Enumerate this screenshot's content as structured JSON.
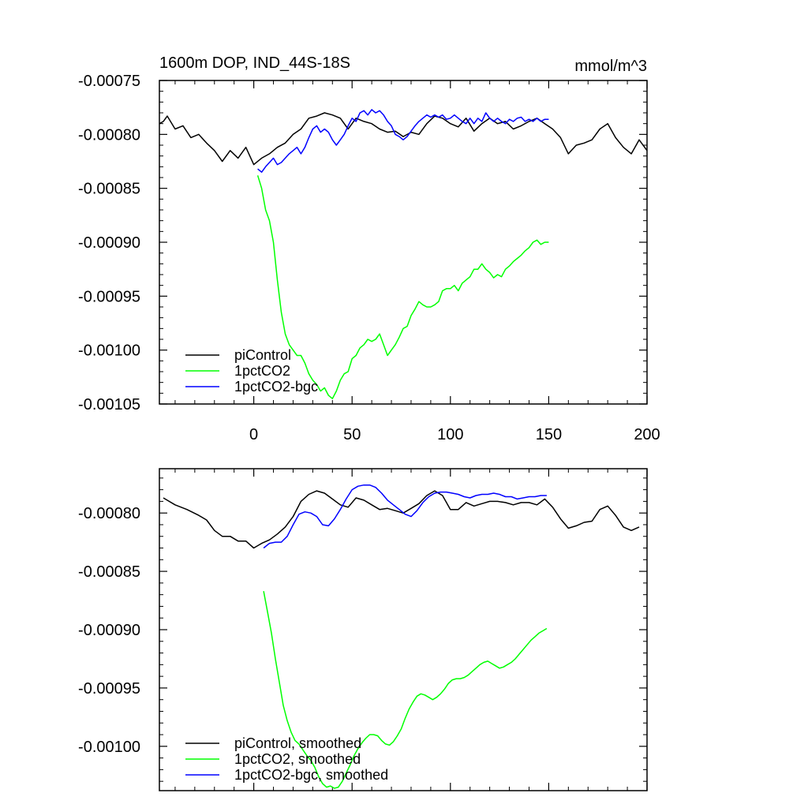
{
  "chart_data": [
    {
      "type": "line",
      "title": "1600m DOP, IND_44S-18S",
      "units": "mmol/m^3",
      "xlabel": "",
      "ylabel": "",
      "xlim": [
        -48,
        200
      ],
      "ylim": [
        -0.00105,
        -0.00075
      ],
      "x_ticks": [
        0,
        50,
        100,
        150,
        200
      ],
      "y_ticks": [
        -0.00075,
        -0.0008,
        -0.00085,
        -0.0009,
        -0.00095,
        -0.001,
        -0.00105
      ],
      "y_tick_labels": [
        "-0.00075",
        "-0.00080",
        "-0.00085",
        "-0.00090",
        "-0.00095",
        "-0.00100",
        "-0.00105"
      ],
      "x_labels_shown": true,
      "legend_position": "bottom-left",
      "series": [
        {
          "name": "piControl",
          "color": "#000000",
          "x": [
            -48,
            -46,
            -44,
            -40,
            -36,
            -32,
            -28,
            -24,
            -20,
            -16,
            -12,
            -8,
            -4,
            0,
            4,
            8,
            12,
            16,
            20,
            24,
            28,
            32,
            36,
            40,
            44,
            48,
            52,
            56,
            60,
            64,
            68,
            72,
            76,
            80,
            84,
            88,
            92,
            96,
            100,
            104,
            108,
            112,
            116,
            120,
            124,
            128,
            132,
            136,
            140,
            144,
            148,
            152,
            156,
            160,
            164,
            168,
            172,
            176,
            180,
            184,
            188,
            192,
            196,
            200
          ],
          "values": [
            -0.00079,
            -0.000788,
            -0.000783,
            -0.000795,
            -0.000792,
            -0.000803,
            -0.0008,
            -0.000808,
            -0.000815,
            -0.000825,
            -0.000815,
            -0.000822,
            -0.000812,
            -0.000828,
            -0.000822,
            -0.000818,
            -0.000812,
            -0.000808,
            -0.0008,
            -0.000795,
            -0.000785,
            -0.000783,
            -0.00078,
            -0.000782,
            -0.000785,
            -0.000795,
            -0.000785,
            -0.000788,
            -0.00079,
            -0.000795,
            -0.000798,
            -0.000797,
            -0.000802,
            -0.000798,
            -0.0008,
            -0.00079,
            -0.000783,
            -0.000785,
            -0.00079,
            -0.000793,
            -0.000785,
            -0.000797,
            -0.00079,
            -0.000785,
            -0.00079,
            -0.000788,
            -0.000795,
            -0.000792,
            -0.000788,
            -0.000785,
            -0.00079,
            -0.000795,
            -0.000803,
            -0.000818,
            -0.00081,
            -0.000808,
            -0.000805,
            -0.000795,
            -0.00079,
            -0.000803,
            -0.000812,
            -0.000818,
            -0.000805,
            -0.000815
          ]
        },
        {
          "name": "1pctCO2",
          "color": "#00ff00",
          "x": [
            2,
            4,
            6,
            8,
            10,
            12,
            14,
            16,
            18,
            20,
            22,
            24,
            26,
            28,
            30,
            32,
            34,
            36,
            38,
            40,
            42,
            44,
            46,
            48,
            50,
            52,
            54,
            56,
            58,
            60,
            62,
            64,
            66,
            68,
            70,
            72,
            74,
            76,
            78,
            80,
            82,
            84,
            86,
            88,
            90,
            92,
            94,
            96,
            98,
            100,
            102,
            104,
            106,
            108,
            110,
            112,
            114,
            116,
            118,
            120,
            122,
            124,
            126,
            128,
            130,
            132,
            134,
            136,
            138,
            140,
            142,
            144,
            146,
            148,
            150
          ],
          "values": [
            -0.000838,
            -0.00085,
            -0.00087,
            -0.00088,
            -0.0009,
            -0.000935,
            -0.000965,
            -0.000985,
            -0.000995,
            -0.001,
            -0.001005,
            -0.001005,
            -0.001012,
            -0.001022,
            -0.001028,
            -0.001032,
            -0.001038,
            -0.001035,
            -0.001042,
            -0.001045,
            -0.001038,
            -0.001028,
            -0.001022,
            -0.00102,
            -0.001008,
            -0.001005,
            -0.000998,
            -0.000995,
            -0.00099,
            -0.000992,
            -0.00099,
            -0.000985,
            -0.000995,
            -0.001005,
            -0.001,
            -0.000995,
            -0.000988,
            -0.00098,
            -0.000978,
            -0.000968,
            -0.000962,
            -0.000955,
            -0.000958,
            -0.00096,
            -0.00096,
            -0.000958,
            -0.000955,
            -0.000945,
            -0.000943,
            -0.000943,
            -0.00094,
            -0.000945,
            -0.000938,
            -0.000935,
            -0.000932,
            -0.000925,
            -0.000925,
            -0.00092,
            -0.000925,
            -0.000928,
            -0.000933,
            -0.00093,
            -0.000932,
            -0.000925,
            -0.000922,
            -0.000918,
            -0.000915,
            -0.000912,
            -0.000908,
            -0.000905,
            -0.0009,
            -0.000898,
            -0.000902,
            -0.0009,
            -0.0009
          ]
        },
        {
          "name": "1pctCO2-bgc",
          "color": "#0000ff",
          "x": [
            2,
            4,
            6,
            8,
            10,
            12,
            14,
            16,
            18,
            20,
            22,
            24,
            26,
            28,
            30,
            32,
            34,
            36,
            38,
            40,
            42,
            44,
            46,
            48,
            50,
            52,
            54,
            56,
            58,
            60,
            62,
            64,
            66,
            68,
            70,
            72,
            74,
            76,
            78,
            80,
            82,
            84,
            86,
            88,
            90,
            92,
            94,
            96,
            98,
            100,
            102,
            104,
            106,
            108,
            110,
            112,
            114,
            116,
            118,
            120,
            122,
            124,
            126,
            128,
            130,
            132,
            134,
            136,
            138,
            140,
            142,
            144,
            146,
            148,
            150
          ],
          "values": [
            -0.000832,
            -0.000835,
            -0.00083,
            -0.000826,
            -0.000822,
            -0.000828,
            -0.000826,
            -0.000822,
            -0.000818,
            -0.000815,
            -0.000812,
            -0.000818,
            -0.000812,
            -0.000803,
            -0.000795,
            -0.000792,
            -0.000798,
            -0.000795,
            -0.000798,
            -0.000805,
            -0.00081,
            -0.000805,
            -0.0008,
            -0.000792,
            -0.000785,
            -0.000788,
            -0.00078,
            -0.000778,
            -0.000782,
            -0.000777,
            -0.00078,
            -0.000778,
            -0.000782,
            -0.000788,
            -0.000792,
            -0.0008,
            -0.000802,
            -0.000805,
            -0.000802,
            -0.000797,
            -0.000792,
            -0.000788,
            -0.000785,
            -0.000782,
            -0.000784,
            -0.000782,
            -0.000784,
            -0.000782,
            -0.000786,
            -0.000785,
            -0.000782,
            -0.000785,
            -0.000788,
            -0.00079,
            -0.000785,
            -0.00079,
            -0.000785,
            -0.000788,
            -0.00078,
            -0.000785,
            -0.000788,
            -0.000785,
            -0.000788,
            -0.00079,
            -0.000786,
            -0.000788,
            -0.000785,
            -0.000784,
            -0.000788,
            -0.000786,
            -0.000788,
            -0.000785,
            -0.000788,
            -0.000786,
            -0.000786
          ]
        }
      ]
    },
    {
      "type": "line",
      "title": "",
      "units": "",
      "xlabel": "",
      "ylabel": "",
      "xlim": [
        -48,
        200
      ],
      "ylim": [
        -0.001038,
        -0.000762
      ],
      "x_ticks": [
        0,
        50,
        100,
        150,
        200
      ],
      "y_ticks": [
        -0.0008,
        -0.00085,
        -0.0009,
        -0.00095,
        -0.001
      ],
      "y_tick_labels": [
        "-0.00080",
        "-0.00085",
        "-0.00090",
        "-0.00095",
        "-0.00100"
      ],
      "x_labels_shown": false,
      "legend_position": "bottom-left",
      "series": [
        {
          "name": "piControl, smoothed",
          "color": "#000000",
          "x": [
            -46,
            -40,
            -34,
            -28,
            -24,
            -20,
            -16,
            -12,
            -8,
            -4,
            0,
            4,
            8,
            12,
            16,
            20,
            24,
            28,
            32,
            36,
            40,
            44,
            48,
            52,
            56,
            60,
            64,
            68,
            72,
            76,
            80,
            84,
            88,
            92,
            96,
            100,
            104,
            108,
            112,
            116,
            120,
            124,
            128,
            132,
            136,
            140,
            144,
            148,
            152,
            156,
            160,
            164,
            168,
            172,
            176,
            180,
            184,
            188,
            192,
            196
          ],
          "values": [
            -0.000787,
            -0.000793,
            -0.000797,
            -0.000802,
            -0.000806,
            -0.000815,
            -0.00082,
            -0.00082,
            -0.000824,
            -0.000824,
            -0.00083,
            -0.000826,
            -0.000823,
            -0.000818,
            -0.000812,
            -0.000803,
            -0.00079,
            -0.000784,
            -0.000781,
            -0.000783,
            -0.000788,
            -0.000793,
            -0.000795,
            -0.000787,
            -0.000789,
            -0.000793,
            -0.000797,
            -0.000796,
            -0.000798,
            -0.0008,
            -0.000796,
            -0.000792,
            -0.000785,
            -0.000781,
            -0.000785,
            -0.000797,
            -0.000797,
            -0.000791,
            -0.000794,
            -0.000792,
            -0.00079,
            -0.00079,
            -0.000791,
            -0.000793,
            -0.000791,
            -0.000791,
            -0.000793,
            -0.000788,
            -0.000795,
            -0.000805,
            -0.000813,
            -0.000811,
            -0.000808,
            -0.000807,
            -0.000797,
            -0.000794,
            -0.000802,
            -0.000812,
            -0.000815,
            -0.000812
          ]
        },
        {
          "name": "1pctCO2, smoothed",
          "color": "#00ff00",
          "x": [
            5,
            7,
            9,
            11,
            13,
            15,
            17,
            19,
            21,
            23,
            25,
            27,
            29,
            31,
            33,
            35,
            37,
            39,
            41,
            43,
            45,
            47,
            49,
            51,
            53,
            55,
            57,
            59,
            61,
            63,
            65,
            67,
            69,
            71,
            73,
            75,
            77,
            79,
            81,
            83,
            85,
            87,
            89,
            91,
            93,
            95,
            97,
            99,
            101,
            103,
            105,
            107,
            109,
            111,
            113,
            115,
            117,
            119,
            121,
            123,
            125,
            127,
            129,
            131,
            133,
            135,
            137,
            139,
            141,
            143,
            145,
            147,
            149
          ],
          "values": [
            -0.000867,
            -0.000885,
            -0.000903,
            -0.000925,
            -0.000945,
            -0.000965,
            -0.000978,
            -0.000988,
            -0.000995,
            -0.000998,
            -0.001003,
            -0.001008,
            -0.001012,
            -0.001018,
            -0.001026,
            -0.001032,
            -0.001035,
            -0.001034,
            -0.001036,
            -0.001035,
            -0.00103,
            -0.001023,
            -0.001016,
            -0.001008,
            -0.001002,
            -0.000997,
            -0.000993,
            -0.00099,
            -0.00099,
            -0.000991,
            -0.000995,
            -0.000998,
            -0.000999,
            -0.000996,
            -0.000991,
            -0.000985,
            -0.000976,
            -0.000968,
            -0.000962,
            -0.000957,
            -0.000955,
            -0.000956,
            -0.000958,
            -0.00096,
            -0.000958,
            -0.000955,
            -0.000951,
            -0.000946,
            -0.000943,
            -0.000942,
            -0.000942,
            -0.000941,
            -0.000939,
            -0.000936,
            -0.000933,
            -0.00093,
            -0.000928,
            -0.000927,
            -0.000929,
            -0.000931,
            -0.000933,
            -0.000932,
            -0.00093,
            -0.000928,
            -0.000925,
            -0.000921,
            -0.000917,
            -0.000913,
            -0.000909,
            -0.000906,
            -0.000903,
            -0.000901,
            -0.000899
          ]
        },
        {
          "name": "1pctCO2-bgc, smoothed",
          "color": "#0000ff",
          "x": [
            5,
            8,
            11,
            14,
            17,
            20,
            23,
            26,
            29,
            32,
            35,
            38,
            41,
            44,
            47,
            50,
            53,
            56,
            59,
            62,
            65,
            68,
            71,
            74,
            77,
            80,
            83,
            86,
            89,
            92,
            95,
            98,
            101,
            104,
            107,
            110,
            113,
            116,
            119,
            122,
            125,
            128,
            131,
            134,
            137,
            140,
            143,
            146,
            149
          ],
          "values": [
            -0.00083,
            -0.000826,
            -0.000825,
            -0.000825,
            -0.00082,
            -0.00081,
            -0.000801,
            -0.000799,
            -0.0008,
            -0.000803,
            -0.00081,
            -0.000811,
            -0.000805,
            -0.000797,
            -0.000788,
            -0.00078,
            -0.000777,
            -0.000776,
            -0.000776,
            -0.000778,
            -0.000783,
            -0.000789,
            -0.000793,
            -0.000797,
            -0.000801,
            -0.000803,
            -0.000798,
            -0.000791,
            -0.000786,
            -0.000783,
            -0.000782,
            -0.000782,
            -0.000783,
            -0.000784,
            -0.000786,
            -0.000787,
            -0.000785,
            -0.000784,
            -0.000784,
            -0.000783,
            -0.000784,
            -0.000786,
            -0.000786,
            -0.000788,
            -0.000787,
            -0.000786,
            -0.000786,
            -0.000785,
            -0.000785
          ]
        }
      ]
    }
  ]
}
